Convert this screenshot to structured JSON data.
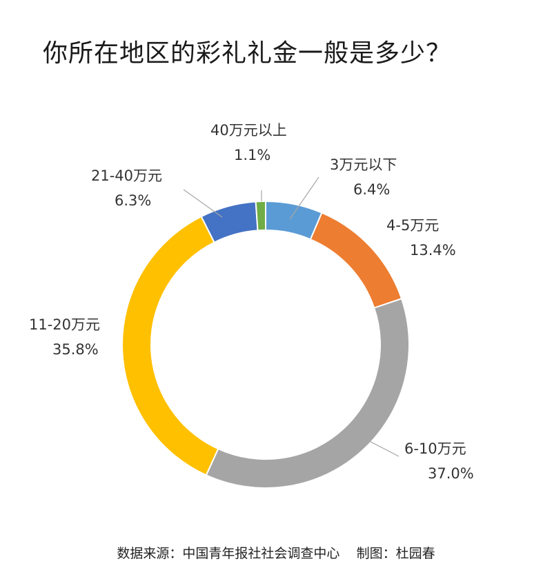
{
  "title": "你所在地区的彩礼礼金一般是多少？",
  "footer": {
    "source": "数据来源：中国青年报社社会调查中心",
    "author": "制图：杜园春"
  },
  "chart_data": {
    "type": "pie",
    "donut": true,
    "title": "你所在地区的彩礼礼金一般是多少？",
    "unit": "%",
    "slices": [
      {
        "label": "3万元以下",
        "value": 6.4,
        "display": "6.4%",
        "color": "#5B9BD5"
      },
      {
        "label": "4-5万元",
        "value": 13.4,
        "display": "13.4%",
        "color": "#ED7D31"
      },
      {
        "label": "6-10万元",
        "value": 37.0,
        "display": "37.0%",
        "color": "#A5A5A5"
      },
      {
        "label": "11-20万元",
        "value": 35.8,
        "display": "35.8%",
        "color": "#FFC000"
      },
      {
        "label": "21-40万元",
        "value": 6.3,
        "display": "6.3%",
        "color": "#4472C4"
      },
      {
        "label": "40万元以上",
        "value": 1.1,
        "display": "1.1%",
        "color": "#70AD47"
      }
    ],
    "legend": "none"
  }
}
